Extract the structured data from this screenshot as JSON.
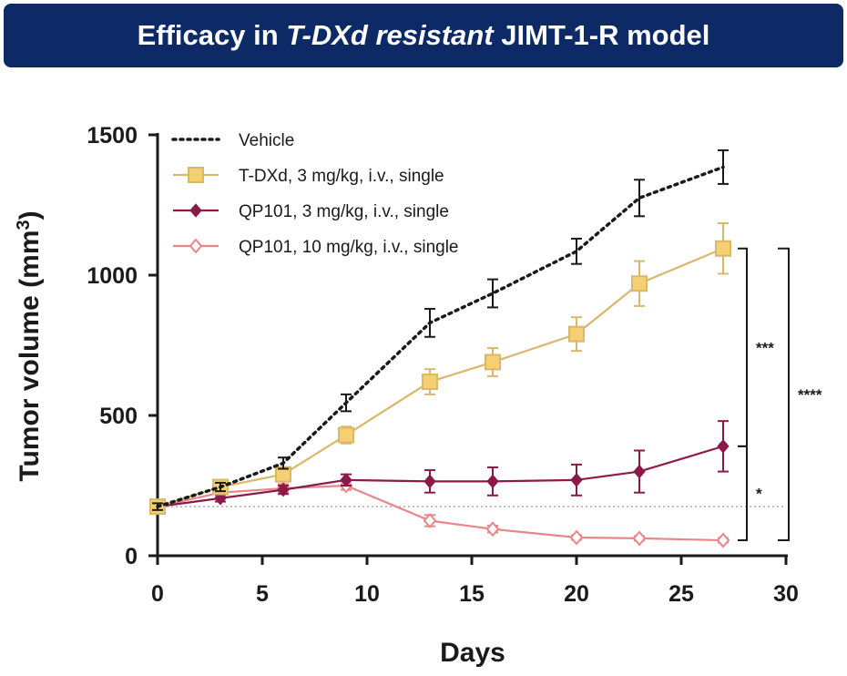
{
  "banner": {
    "part1": "Efficacy in ",
    "part2": "T-DXd resistant",
    "part3": " JIMT-1-R model"
  },
  "colors": {
    "banner_bg": "#0d2a66",
    "vehicle": "#1a1a1a",
    "tdxd": "#d8b86a",
    "tdxd_fill": "#f5cf72",
    "qp101_3": "#8b1a4a",
    "qp101_10": "#e8868a",
    "baseline": "#aaaaaa"
  },
  "chart_data": {
    "type": "line",
    "xlabel": "Days",
    "ylabel": "Tumor volume (mm",
    "ylabel_sup": "3",
    "ylabel_close": ")",
    "xlim": [
      0,
      30
    ],
    "ylim": [
      0,
      1500
    ],
    "xticks": [
      "0",
      "5",
      "10",
      "15",
      "20",
      "25",
      "30"
    ],
    "yticks": [
      "0",
      "500",
      "1000",
      "1500"
    ],
    "baseline_y": 175,
    "series": [
      {
        "name": "Vehicle",
        "key": "vehicle",
        "style": "dotted",
        "marker": "none",
        "x": [
          0,
          3,
          6,
          9,
          13,
          16,
          20,
          23,
          27
        ],
        "y": [
          175,
          245,
          330,
          545,
          830,
          935,
          1085,
          1275,
          1385
        ],
        "err": [
          12,
          15,
          20,
          30,
          50,
          50,
          45,
          65,
          60
        ]
      },
      {
        "name": "T-DXd, 3 mg/kg, i.v., single",
        "key": "tdxd",
        "style": "solid",
        "marker": "square",
        "x": [
          0,
          3,
          6,
          9,
          13,
          16,
          20,
          23,
          27
        ],
        "y": [
          175,
          245,
          290,
          430,
          620,
          690,
          790,
          970,
          1095
        ],
        "err": [
          12,
          15,
          20,
          30,
          45,
          50,
          60,
          80,
          90
        ]
      },
      {
        "name": "QP101, 3 mg/kg, i.v., single",
        "key": "qp101_3",
        "style": "solid",
        "marker": "diamond",
        "x": [
          0,
          3,
          6,
          9,
          13,
          16,
          20,
          23,
          27
        ],
        "y": [
          175,
          205,
          235,
          270,
          265,
          265,
          270,
          300,
          390
        ],
        "err": [
          10,
          12,
          15,
          20,
          40,
          50,
          55,
          75,
          90
        ]
      },
      {
        "name": "QP101, 10 mg/kg, i.v., single",
        "key": "qp101_10",
        "style": "solid",
        "marker": "diamond-open",
        "x": [
          0,
          3,
          6,
          9,
          13,
          16,
          20,
          23,
          27
        ],
        "y": [
          175,
          225,
          240,
          250,
          125,
          95,
          65,
          62,
          55
        ],
        "err": [
          10,
          12,
          15,
          15,
          20,
          12,
          8,
          8,
          8
        ]
      }
    ],
    "significance": [
      {
        "label": "***",
        "from_y": 1095,
        "to_y": 390
      },
      {
        "label": "*",
        "from_y": 390,
        "to_y": 55
      },
      {
        "label": "****",
        "from_y": 1095,
        "to_y": 55
      }
    ]
  }
}
